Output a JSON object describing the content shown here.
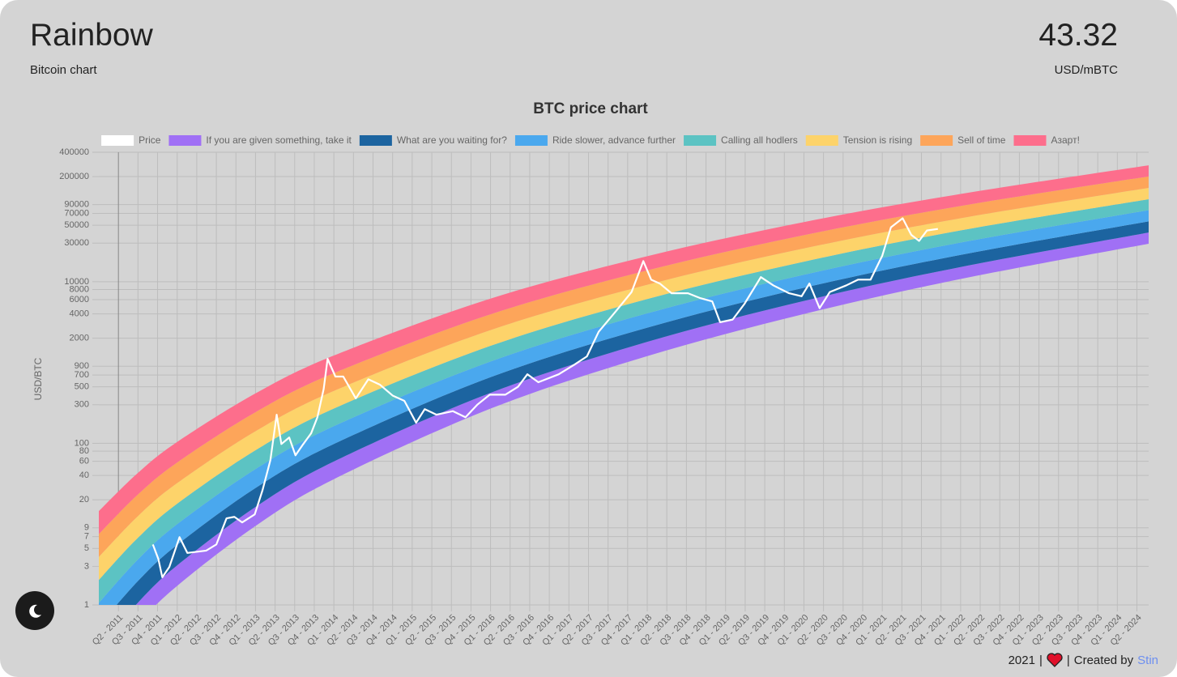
{
  "header": {
    "title": "Rainbow",
    "subtitle": "Bitcoin chart",
    "price": "43.32",
    "unit": "USD/mBTC"
  },
  "footer": {
    "year": "2021",
    "separator": "|",
    "credit": "Created by",
    "author": "Stin"
  },
  "chart_data": {
    "type": "line",
    "title": "BTC price chart",
    "y_label": "USD/BTC",
    "log_scale": true,
    "grid": true,
    "legend": "top",
    "xlim": [
      2011,
      2024.4
    ],
    "xticks": [
      {
        "value": 2011.25,
        "label": "Q2 - 2011"
      },
      {
        "value": 2011.5,
        "label": "Q3 - 2011"
      },
      {
        "value": 2011.75,
        "label": "Q4 - 2011"
      },
      {
        "value": 2012,
        "label": "Q1 - 2012"
      },
      {
        "value": 2012.25,
        "label": "Q2 - 2012"
      },
      {
        "value": 2012.5,
        "label": "Q3 - 2012"
      },
      {
        "value": 2012.75,
        "label": "Q4 - 2012"
      },
      {
        "value": 2013,
        "label": "Q1 - 2013"
      },
      {
        "value": 2013.25,
        "label": "Q2 - 2013"
      },
      {
        "value": 2013.5,
        "label": "Q3 - 2013"
      },
      {
        "value": 2013.75,
        "label": "Q4 - 2013"
      },
      {
        "value": 2014,
        "label": "Q1 - 2014"
      },
      {
        "value": 2014.25,
        "label": "Q2 - 2014"
      },
      {
        "value": 2014.5,
        "label": "Q3 - 2014"
      },
      {
        "value": 2014.75,
        "label": "Q4 - 2014"
      },
      {
        "value": 2015,
        "label": "Q1 - 2015"
      },
      {
        "value": 2015.25,
        "label": "Q2 - 2015"
      },
      {
        "value": 2015.5,
        "label": "Q3 - 2015"
      },
      {
        "value": 2015.75,
        "label": "Q4 - 2015"
      },
      {
        "value": 2016,
        "label": "Q1 - 2016"
      },
      {
        "value": 2016.25,
        "label": "Q2 - 2016"
      },
      {
        "value": 2016.5,
        "label": "Q3 - 2016"
      },
      {
        "value": 2016.75,
        "label": "Q4 - 2016"
      },
      {
        "value": 2017,
        "label": "Q1 - 2017"
      },
      {
        "value": 2017.25,
        "label": "Q2 - 2017"
      },
      {
        "value": 2017.5,
        "label": "Q3 - 2017"
      },
      {
        "value": 2017.75,
        "label": "Q4 - 2017"
      },
      {
        "value": 2018,
        "label": "Q1 - 2018"
      },
      {
        "value": 2018.25,
        "label": "Q2 - 2018"
      },
      {
        "value": 2018.5,
        "label": "Q3 - 2018"
      },
      {
        "value": 2018.75,
        "label": "Q4 - 2018"
      },
      {
        "value": 2019,
        "label": "Q1 - 2019"
      },
      {
        "value": 2019.25,
        "label": "Q2 - 2019"
      },
      {
        "value": 2019.5,
        "label": "Q3 - 2019"
      },
      {
        "value": 2019.75,
        "label": "Q4 - 2019"
      },
      {
        "value": 2020,
        "label": "Q1 - 2020"
      },
      {
        "value": 2020.25,
        "label": "Q2 - 2020"
      },
      {
        "value": 2020.5,
        "label": "Q3 - 2020"
      },
      {
        "value": 2020.75,
        "label": "Q4 - 2020"
      },
      {
        "value": 2021,
        "label": "Q1 - 2021"
      },
      {
        "value": 2021.25,
        "label": "Q2 - 2021"
      },
      {
        "value": 2021.5,
        "label": "Q3 - 2021"
      },
      {
        "value": 2021.75,
        "label": "Q4 - 2021"
      },
      {
        "value": 2022,
        "label": "Q1 - 2022"
      },
      {
        "value": 2022.25,
        "label": "Q2 - 2022"
      },
      {
        "value": 2022.5,
        "label": "Q3 - 2022"
      },
      {
        "value": 2022.75,
        "label": "Q4 - 2022"
      },
      {
        "value": 2023,
        "label": "Q1 - 2023"
      },
      {
        "value": 2023.25,
        "label": "Q2 - 2023"
      },
      {
        "value": 2023.5,
        "label": "Q3 - 2023"
      },
      {
        "value": 2023.75,
        "label": "Q4 - 2023"
      },
      {
        "value": 2024,
        "label": "Q1 - 2024"
      },
      {
        "value": 2024.25,
        "label": "Q2 - 2024"
      }
    ],
    "ylim": [
      1,
      400000
    ],
    "yticks": [
      1,
      3,
      5,
      7,
      9,
      20,
      40,
      60,
      80,
      100,
      300,
      500,
      700,
      900,
      2000,
      4000,
      6000,
      8000,
      10000,
      30000,
      50000,
      70000,
      90000,
      200000,
      400000
    ],
    "band_x": [
      2011,
      2011.5,
      2012,
      2013,
      2014,
      2016,
      2018,
      2020,
      2022,
      2024.4
    ],
    "series": [
      {
        "name": "Price",
        "color": "#ffffff",
        "x": [
          2011.69,
          2011.76,
          2011.81,
          2011.9,
          2012.03,
          2012.13,
          2012.37,
          2012.5,
          2012.63,
          2012.73,
          2012.83,
          2012.99,
          2013.09,
          2013.19,
          2013.27,
          2013.33,
          2013.43,
          2013.51,
          2013.61,
          2013.71,
          2013.79,
          2013.87,
          2013.92,
          2014.02,
          2014.12,
          2014.28,
          2014.44,
          2014.59,
          2014.75,
          2014.9,
          2015.05,
          2015.16,
          2015.31,
          2015.52,
          2015.68,
          2015.83,
          2015.99,
          2016.19,
          2016.35,
          2016.47,
          2016.61,
          2016.87,
          2017.07,
          2017.23,
          2017.38,
          2017.59,
          2017.8,
          2017.95,
          2018.05,
          2018.16,
          2018.31,
          2018.52,
          2018.67,
          2018.83,
          2018.93,
          2019.09,
          2019.24,
          2019.45,
          2019.61,
          2019.81,
          2019.97,
          2020.07,
          2020.2,
          2020.33,
          2020.54,
          2020.69,
          2020.85,
          2021,
          2021.11,
          2021.26,
          2021.37,
          2021.47,
          2021.57,
          2021.71
        ],
        "values": [
          5.6,
          3.7,
          2.2,
          2.95,
          6.9,
          4.4,
          4.7,
          5.6,
          11.8,
          12.3,
          10.5,
          13.2,
          26.4,
          62,
          226,
          98,
          118,
          71,
          98,
          133,
          210,
          470,
          1110,
          670,
          670,
          360,
          620,
          530,
          390,
          335,
          180,
          265,
          226,
          250,
          210,
          300,
          400,
          400,
          500,
          715,
          570,
          715,
          940,
          1190,
          2400,
          4200,
          7450,
          18000,
          10600,
          9500,
          7200,
          7200,
          6300,
          5700,
          3150,
          3400,
          5300,
          11400,
          9000,
          7200,
          6600,
          9500,
          4700,
          7450,
          9000,
          10600,
          10600,
          21000,
          47000,
          61000,
          38000,
          32000,
          43000,
          45000
        ]
      },
      {
        "name": "If you are given something, take it",
        "color": "#a070f5",
        "low": [
          0.15,
          0.58,
          1.72,
          9.5,
          36,
          269,
          1200,
          3980,
          10800,
          29500
        ],
        "values": [
          0.29,
          1.07,
          3.09,
          16.3,
          59.6,
          421,
          1800,
          5780,
          15200,
          40600
        ]
      },
      {
        "name": "What are you waiting for?",
        "color": "#1c64a0",
        "low": [
          0.29,
          1.07,
          3.09,
          16.3,
          59.6,
          421,
          1800,
          5780,
          15200,
          40600
        ],
        "values": [
          0.55,
          1.98,
          5.55,
          28,
          98,
          658,
          2700,
          8400,
          21500,
          55800
        ]
      },
      {
        "name": "Ride slower, advance further",
        "color": "#4aa8ee",
        "low": [
          0.55,
          1.98,
          5.55,
          28,
          98,
          658,
          2700,
          8400,
          21500,
          55800
        ],
        "values": [
          1.06,
          3.66,
          9.98,
          48,
          163,
          1030,
          4060,
          12200,
          30500,
          76900
        ]
      },
      {
        "name": "Calling all hodlers",
        "color": "#5cc3c3",
        "low": [
          1.06,
          3.66,
          9.98,
          48,
          163,
          1030,
          4060,
          12200,
          30500,
          76900
        ],
        "values": [
          2.04,
          6.78,
          17.9,
          82,
          269,
          1610,
          6100,
          17700,
          43100,
          105000
        ]
      },
      {
        "name": "Tension is rising",
        "color": "#fdd36a",
        "low": [
          2.04,
          6.78,
          17.9,
          82,
          269,
          1610,
          6100,
          17700,
          43100,
          105000
        ],
        "values": [
          3.93,
          12.6,
          32.2,
          141,
          445,
          2520,
          9160,
          25800,
          61000,
          145000
        ]
      },
      {
        "name": "Sell of time",
        "color": "#fda55a",
        "low": [
          3.93,
          12.6,
          32.2,
          141,
          445,
          2520,
          9160,
          25800,
          61000,
          145000
        ],
        "values": [
          7.55,
          23.3,
          57.9,
          243,
          738,
          3950,
          13800,
          37700,
          86500,
          201000
        ]
      },
      {
        "name": "Азарт!",
        "color": "#fd6e8c",
        "low": [
          7.55,
          23.3,
          57.9,
          243,
          738,
          3950,
          13800,
          37700,
          86500,
          201000
        ],
        "values": [
          14.5,
          43.1,
          104,
          415,
          1220,
          6180,
          20700,
          54700,
          122000,
          276000
        ]
      }
    ]
  }
}
